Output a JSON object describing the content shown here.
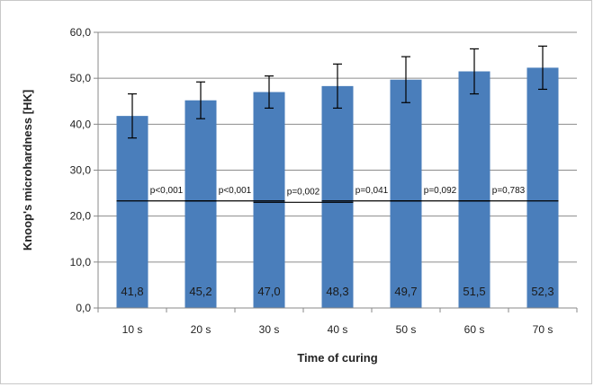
{
  "chart_data": {
    "type": "bar",
    "title": "",
    "xlabel": "Time of curing",
    "ylabel": "Knoop's microhardness  [HK]",
    "categories": [
      "10 s",
      "20 s",
      "30 s",
      "40 s",
      "50 s",
      "60 s",
      "70 s"
    ],
    "values": [
      41.8,
      45.2,
      47.0,
      48.3,
      49.7,
      51.5,
      52.3
    ],
    "value_labels": [
      "41,8",
      "45,2",
      "47,0",
      "48,3",
      "49,7",
      "51,5",
      "52,3"
    ],
    "error_bars": [
      4.8,
      4.0,
      3.5,
      4.8,
      5.0,
      4.9,
      4.7
    ],
    "ylim": [
      0,
      60
    ],
    "y_ticks": [
      0,
      10,
      20,
      30,
      40,
      50,
      60
    ],
    "y_tick_labels": [
      "0,0",
      "10,0",
      "20,0",
      "30,0",
      "40,0",
      "50,0",
      "60,0"
    ],
    "comparisons": [
      {
        "label": "p<0,001",
        "y": 23.3
      },
      {
        "label": "p<0,001",
        "y": 23.3
      },
      {
        "label": "p=0,002",
        "y": 23.0
      },
      {
        "label": "p=0,041",
        "y": 23.3
      },
      {
        "label": "p=0,092",
        "y": 23.3
      },
      {
        "label": "p=0,783",
        "y": 23.3
      }
    ],
    "grid": true,
    "legend": "none",
    "bar_color": "#4a7ebb",
    "grid_color": "#8c8c8c"
  }
}
